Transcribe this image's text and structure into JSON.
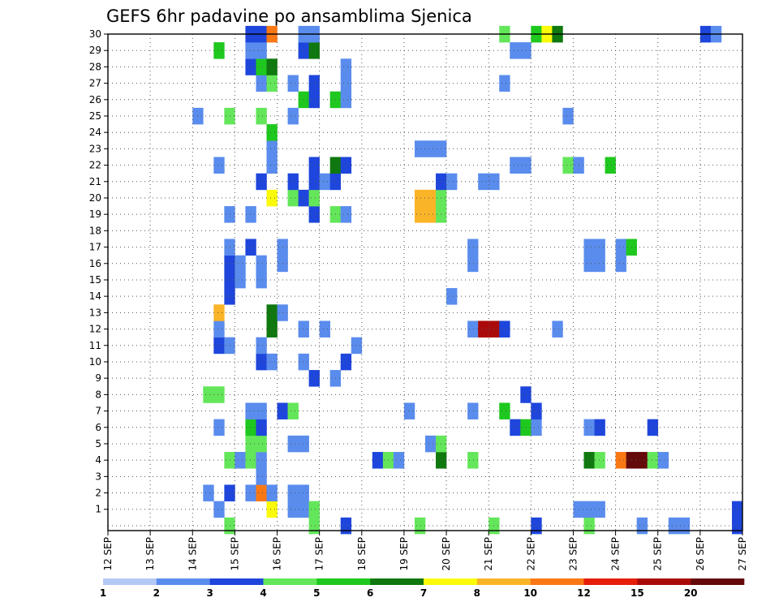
{
  "chart_data": {
    "type": "heatmap",
    "title": "GEFS 6hr padavine po ansamblima Sjenica",
    "xlabel": "",
    "ylabel": "",
    "x_ticks": [
      "12 SEP",
      "13 SEP",
      "14 SEP",
      "15 SEP",
      "16 SEP",
      "17 SEP",
      "18 SEP",
      "19 SEP",
      "20 SEP",
      "21 SEP",
      "22 SEP",
      "23 SEP",
      "24 SEP",
      "25 SEP",
      "26 SEP",
      "27 SEP"
    ],
    "y_ticks": [
      "1",
      "2",
      "3",
      "4",
      "5",
      "6",
      "7",
      "8",
      "9",
      "10",
      "11",
      "12",
      "13",
      "14",
      "15",
      "16",
      "17",
      "18",
      "19",
      "20",
      "21",
      "22",
      "23",
      "24",
      "25",
      "26",
      "27",
      "28",
      "29",
      "30"
    ],
    "xlim_steps": [
      0,
      60
    ],
    "ylim": [
      0,
      30
    ],
    "grid": true,
    "legend_position": "bottom",
    "color_scale": {
      "labels": [
        "1",
        "2",
        "3",
        "4",
        "5",
        "6",
        "7",
        "8",
        "10",
        "12",
        "15",
        "20"
      ],
      "colors": [
        "#b4c8f5",
        "#5a8ced",
        "#1e46dc",
        "#64e65a",
        "#1ec81e",
        "#0f780f",
        "#fafa0a",
        "#fab428",
        "#fa7814",
        "#e61e0a",
        "#aa0a0a",
        "#640a0a"
      ]
    },
    "cells": [
      {
        "m": 0,
        "s": 36,
        "c": 3
      },
      {
        "m": 0,
        "s": 40,
        "c": 2
      },
      {
        "m": 0,
        "s": 45,
        "c": 3
      },
      {
        "m": 0,
        "s": 50,
        "c": 1
      },
      {
        "m": 0,
        "s": 53,
        "c": 1
      },
      {
        "m": 0,
        "s": 54,
        "c": 1
      },
      {
        "m": 0,
        "s": 59,
        "c": 2
      },
      {
        "m": 0,
        "s": 11,
        "c": 3
      },
      {
        "m": 0,
        "s": 29,
        "c": 3
      },
      {
        "m": 0,
        "s": 22,
        "c": 2
      },
      {
        "m": 0,
        "s": 19,
        "c": 3
      },
      {
        "m": 1,
        "s": 10,
        "c": 1
      },
      {
        "m": 1,
        "s": 15,
        "c": 6
      },
      {
        "m": 1,
        "s": 17,
        "c": 1
      },
      {
        "m": 1,
        "s": 18,
        "c": 1
      },
      {
        "m": 1,
        "s": 19,
        "c": 3
      },
      {
        "m": 1,
        "s": 44,
        "c": 1
      },
      {
        "m": 1,
        "s": 45,
        "c": 1
      },
      {
        "m": 1,
        "s": 46,
        "c": 1
      },
      {
        "m": 1,
        "s": 59,
        "c": 2
      },
      {
        "m": 2,
        "s": 9,
        "c": 1
      },
      {
        "m": 2,
        "s": 11,
        "c": 2
      },
      {
        "m": 2,
        "s": 13,
        "c": 1
      },
      {
        "m": 2,
        "s": 14,
        "c": 8
      },
      {
        "m": 2,
        "s": 15,
        "c": 1
      },
      {
        "m": 2,
        "s": 17,
        "c": 1
      },
      {
        "m": 2,
        "s": 18,
        "c": 1
      },
      {
        "m": 3,
        "s": 14,
        "c": 1
      },
      {
        "m": 4,
        "s": 11,
        "c": 3
      },
      {
        "m": 4,
        "s": 12,
        "c": 1
      },
      {
        "m": 4,
        "s": 13,
        "c": 3
      },
      {
        "m": 4,
        "s": 14,
        "c": 1
      },
      {
        "m": 4,
        "s": 25,
        "c": 2
      },
      {
        "m": 4,
        "s": 26,
        "c": 3
      },
      {
        "m": 4,
        "s": 27,
        "c": 1
      },
      {
        "m": 4,
        "s": 31,
        "c": 5
      },
      {
        "m": 4,
        "s": 34,
        "c": 3
      },
      {
        "m": 4,
        "s": 45,
        "c": 5
      },
      {
        "m": 4,
        "s": 46,
        "c": 3
      },
      {
        "m": 4,
        "s": 48,
        "c": 8
      },
      {
        "m": 4,
        "s": 49,
        "c": 11
      },
      {
        "m": 4,
        "s": 50,
        "c": 11
      },
      {
        "m": 4,
        "s": 51,
        "c": 3
      },
      {
        "m": 4,
        "s": 52,
        "c": 1
      },
      {
        "m": 5,
        "s": 13,
        "c": 3
      },
      {
        "m": 5,
        "s": 14,
        "c": 3
      },
      {
        "m": 5,
        "s": 17,
        "c": 1
      },
      {
        "m": 5,
        "s": 18,
        "c": 1
      },
      {
        "m": 5,
        "s": 30,
        "c": 1
      },
      {
        "m": 5,
        "s": 31,
        "c": 3
      },
      {
        "m": 6,
        "s": 10,
        "c": 1
      },
      {
        "m": 6,
        "s": 13,
        "c": 4
      },
      {
        "m": 6,
        "s": 14,
        "c": 2
      },
      {
        "m": 6,
        "s": 38,
        "c": 2
      },
      {
        "m": 6,
        "s": 39,
        "c": 4
      },
      {
        "m": 6,
        "s": 40,
        "c": 1
      },
      {
        "m": 6,
        "s": 45,
        "c": 1
      },
      {
        "m": 6,
        "s": 46,
        "c": 2
      },
      {
        "m": 6,
        "s": 51,
        "c": 2
      },
      {
        "m": 7,
        "s": 13,
        "c": 1
      },
      {
        "m": 7,
        "s": 14,
        "c": 1
      },
      {
        "m": 7,
        "s": 16,
        "c": 2
      },
      {
        "m": 7,
        "s": 17,
        "c": 3
      },
      {
        "m": 7,
        "s": 28,
        "c": 1
      },
      {
        "m": 7,
        "s": 34,
        "c": 1
      },
      {
        "m": 7,
        "s": 37,
        "c": 4
      },
      {
        "m": 7,
        "s": 40,
        "c": 2
      },
      {
        "m": 8,
        "s": 9,
        "c": 3
      },
      {
        "m": 8,
        "s": 10,
        "c": 3
      },
      {
        "m": 8,
        "s": 39,
        "c": 2
      },
      {
        "m": 9,
        "s": 19,
        "c": 2
      },
      {
        "m": 9,
        "s": 21,
        "c": 1
      },
      {
        "m": 10,
        "s": 14,
        "c": 2
      },
      {
        "m": 10,
        "s": 15,
        "c": 1
      },
      {
        "m": 10,
        "s": 18,
        "c": 1
      },
      {
        "m": 10,
        "s": 22,
        "c": 2
      },
      {
        "m": 11,
        "s": 10,
        "c": 2
      },
      {
        "m": 11,
        "s": 11,
        "c": 1
      },
      {
        "m": 11,
        "s": 14,
        "c": 1
      },
      {
        "m": 11,
        "s": 23,
        "c": 1
      },
      {
        "m": 12,
        "s": 10,
        "c": 1
      },
      {
        "m": 12,
        "s": 15,
        "c": 5
      },
      {
        "m": 12,
        "s": 18,
        "c": 1
      },
      {
        "m": 12,
        "s": 20,
        "c": 1
      },
      {
        "m": 12,
        "s": 34,
        "c": 1
      },
      {
        "m": 12,
        "s": 35,
        "c": 10
      },
      {
        "m": 12,
        "s": 36,
        "c": 10
      },
      {
        "m": 12,
        "s": 37,
        "c": 2
      },
      {
        "m": 12,
        "s": 42,
        "c": 1
      },
      {
        "m": 13,
        "s": 10,
        "c": 7
      },
      {
        "m": 13,
        "s": 15,
        "c": 5
      },
      {
        "m": 13,
        "s": 16,
        "c": 1
      },
      {
        "m": 14,
        "s": 11,
        "c": 2
      },
      {
        "m": 14,
        "s": 32,
        "c": 1
      },
      {
        "m": 15,
        "s": 11,
        "c": 2
      },
      {
        "m": 15,
        "s": 12,
        "c": 1
      },
      {
        "m": 15,
        "s": 14,
        "c": 1
      },
      {
        "m": 16,
        "s": 11,
        "c": 2
      },
      {
        "m": 16,
        "s": 12,
        "c": 1
      },
      {
        "m": 16,
        "s": 14,
        "c": 1
      },
      {
        "m": 16,
        "s": 16,
        "c": 1
      },
      {
        "m": 16,
        "s": 34,
        "c": 1
      },
      {
        "m": 16,
        "s": 45,
        "c": 1
      },
      {
        "m": 16,
        "s": 46,
        "c": 1
      },
      {
        "m": 16,
        "s": 48,
        "c": 1
      },
      {
        "m": 17,
        "s": 11,
        "c": 1
      },
      {
        "m": 17,
        "s": 13,
        "c": 2
      },
      {
        "m": 17,
        "s": 16,
        "c": 1
      },
      {
        "m": 17,
        "s": 34,
        "c": 1
      },
      {
        "m": 17,
        "s": 45,
        "c": 1
      },
      {
        "m": 17,
        "s": 46,
        "c": 1
      },
      {
        "m": 17,
        "s": 48,
        "c": 1
      },
      {
        "m": 17,
        "s": 49,
        "c": 4
      },
      {
        "m": 19,
        "s": 11,
        "c": 1
      },
      {
        "m": 19,
        "s": 13,
        "c": 1
      },
      {
        "m": 19,
        "s": 19,
        "c": 2
      },
      {
        "m": 19,
        "s": 21,
        "c": 3
      },
      {
        "m": 19,
        "s": 22,
        "c": 1
      },
      {
        "m": 19,
        "s": 29,
        "c": 7
      },
      {
        "m": 19,
        "s": 30,
        "c": 7
      },
      {
        "m": 19,
        "s": 31,
        "c": 3
      },
      {
        "m": 20,
        "s": 15,
        "c": 6
      },
      {
        "m": 20,
        "s": 17,
        "c": 3
      },
      {
        "m": 20,
        "s": 18,
        "c": 2
      },
      {
        "m": 20,
        "s": 19,
        "c": 3
      },
      {
        "m": 20,
        "s": 29,
        "c": 7
      },
      {
        "m": 20,
        "s": 30,
        "c": 7
      },
      {
        "m": 20,
        "s": 31,
        "c": 3
      },
      {
        "m": 21,
        "s": 14,
        "c": 2
      },
      {
        "m": 21,
        "s": 17,
        "c": 2
      },
      {
        "m": 21,
        "s": 19,
        "c": 2
      },
      {
        "m": 21,
        "s": 20,
        "c": 1
      },
      {
        "m": 21,
        "s": 21,
        "c": 2
      },
      {
        "m": 21,
        "s": 31,
        "c": 2
      },
      {
        "m": 21,
        "s": 32,
        "c": 1
      },
      {
        "m": 21,
        "s": 35,
        "c": 1
      },
      {
        "m": 21,
        "s": 36,
        "c": 1
      },
      {
        "m": 22,
        "s": 10,
        "c": 1
      },
      {
        "m": 22,
        "s": 15,
        "c": 1
      },
      {
        "m": 22,
        "s": 19,
        "c": 2
      },
      {
        "m": 22,
        "s": 21,
        "c": 5
      },
      {
        "m": 22,
        "s": 22,
        "c": 2
      },
      {
        "m": 22,
        "s": 38,
        "c": 1
      },
      {
        "m": 22,
        "s": 39,
        "c": 1
      },
      {
        "m": 22,
        "s": 43,
        "c": 3
      },
      {
        "m": 22,
        "s": 44,
        "c": 1
      },
      {
        "m": 22,
        "s": 47,
        "c": 4
      },
      {
        "m": 23,
        "s": 15,
        "c": 1
      },
      {
        "m": 23,
        "s": 29,
        "c": 1
      },
      {
        "m": 23,
        "s": 30,
        "c": 1
      },
      {
        "m": 23,
        "s": 31,
        "c": 1
      },
      {
        "m": 24,
        "s": 15,
        "c": 4
      },
      {
        "m": 25,
        "s": 8,
        "c": 1
      },
      {
        "m": 25,
        "s": 11,
        "c": 3
      },
      {
        "m": 25,
        "s": 14,
        "c": 3
      },
      {
        "m": 25,
        "s": 17,
        "c": 1
      },
      {
        "m": 25,
        "s": 43,
        "c": 1
      },
      {
        "m": 26,
        "s": 18,
        "c": 4
      },
      {
        "m": 26,
        "s": 19,
        "c": 2
      },
      {
        "m": 26,
        "s": 21,
        "c": 4
      },
      {
        "m": 26,
        "s": 22,
        "c": 1
      },
      {
        "m": 27,
        "s": 14,
        "c": 1
      },
      {
        "m": 27,
        "s": 15,
        "c": 3
      },
      {
        "m": 27,
        "s": 17,
        "c": 1
      },
      {
        "m": 27,
        "s": 19,
        "c": 2
      },
      {
        "m": 27,
        "s": 22,
        "c": 1
      },
      {
        "m": 27,
        "s": 37,
        "c": 1
      },
      {
        "m": 28,
        "s": 13,
        "c": 2
      },
      {
        "m": 28,
        "s": 14,
        "c": 4
      },
      {
        "m": 28,
        "s": 15,
        "c": 5
      },
      {
        "m": 28,
        "s": 22,
        "c": 1
      },
      {
        "m": 29,
        "s": 10,
        "c": 4
      },
      {
        "m": 29,
        "s": 13,
        "c": 1
      },
      {
        "m": 29,
        "s": 14,
        "c": 1
      },
      {
        "m": 29,
        "s": 18,
        "c": 2
      },
      {
        "m": 29,
        "s": 19,
        "c": 5
      },
      {
        "m": 29,
        "s": 38,
        "c": 1
      },
      {
        "m": 29,
        "s": 39,
        "c": 1
      },
      {
        "m": 30,
        "s": 13,
        "c": 2
      },
      {
        "m": 30,
        "s": 14,
        "c": 2
      },
      {
        "m": 30,
        "s": 15,
        "c": 8
      },
      {
        "m": 30,
        "s": 18,
        "c": 1
      },
      {
        "m": 30,
        "s": 19,
        "c": 1
      },
      {
        "m": 30,
        "s": 37,
        "c": 3
      },
      {
        "m": 30,
        "s": 40,
        "c": 4
      },
      {
        "m": 30,
        "s": 41,
        "c": 6
      },
      {
        "m": 30,
        "s": 42,
        "c": 5
      },
      {
        "m": 30,
        "s": 56,
        "c": 2
      },
      {
        "m": 30,
        "s": 57,
        "c": 1
      }
    ]
  }
}
